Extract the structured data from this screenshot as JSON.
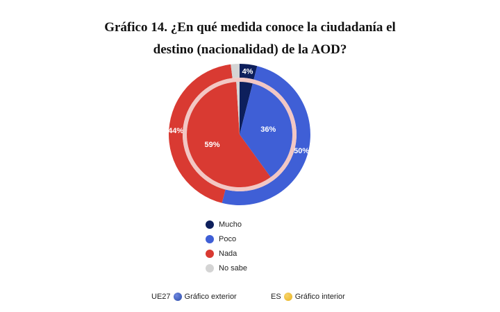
{
  "title_lines": [
    "Gráfico 14. ¿En qué medida conoce la ciudadanía el",
    "destino (nacionalidad) de la AOD?"
  ],
  "chart_data": {
    "type": "pie",
    "title": "Gráfico 14. ¿En qué medida conoce la ciudadanía el destino (nacionalidad) de la AOD?",
    "categories": [
      "Mucho",
      "Poco",
      "Nada",
      "No sabe"
    ],
    "colors": [
      "#0d1f5c",
      "#3f5fd6",
      "#d93a32",
      "#d4d4d4"
    ],
    "series": [
      {
        "name": "Gráfico exterior",
        "region": "UE27",
        "values": [
          4,
          50,
          44,
          2
        ],
        "labels": [
          "4%",
          "50%",
          "44%",
          ""
        ]
      },
      {
        "name": "Gráfico interior",
        "region": "ES",
        "values": [
          4,
          36,
          59,
          1
        ],
        "labels": [
          "",
          "36%",
          "59%",
          ""
        ]
      }
    ],
    "legend_position": "bottom"
  },
  "legend": [
    {
      "label": "Mucho",
      "color": "#0d1f5c"
    },
    {
      "label": "Poco",
      "color": "#3f5fd6"
    },
    {
      "label": "Nada",
      "color": "#d93a32"
    },
    {
      "label": "No sabe",
      "color": "#d4d4d4"
    }
  ],
  "footer": {
    "outer": {
      "region": "UE27",
      "label": "Gráfico exterior",
      "icon": "eu-globe-icon",
      "color": "#2b4ba8"
    },
    "inner": {
      "region": "ES",
      "label": "Gráfico interior",
      "icon": "es-globe-icon",
      "color": "#e8b320"
    }
  }
}
